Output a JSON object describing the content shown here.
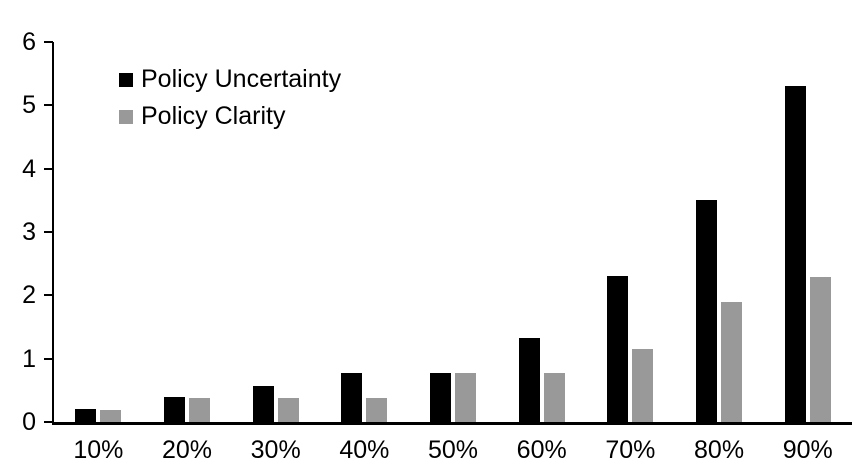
{
  "chart_data": {
    "type": "bar",
    "title": "",
    "xlabel": "",
    "ylabel": "",
    "categories": [
      "10%",
      "20%",
      "30%",
      "40%",
      "50%",
      "60%",
      "70%",
      "80%",
      "90%"
    ],
    "series": [
      {
        "name": "Policy Uncertainty",
        "color": "#000000",
        "values": [
          0.2,
          0.4,
          0.57,
          0.77,
          0.78,
          1.33,
          2.31,
          3.5,
          5.31
        ]
      },
      {
        "name": "Policy Clarity",
        "color": "#999999",
        "values": [
          0.19,
          0.38,
          0.38,
          0.38,
          0.77,
          0.77,
          1.15,
          1.89,
          2.29
        ]
      }
    ],
    "ylim": [
      0,
      6
    ],
    "yticks": [
      0,
      1,
      2,
      3,
      4,
      5,
      6
    ],
    "grid": false,
    "legend_position": "top-left-inside",
    "axis_color": "#000000",
    "background_color": "#ffffff"
  }
}
